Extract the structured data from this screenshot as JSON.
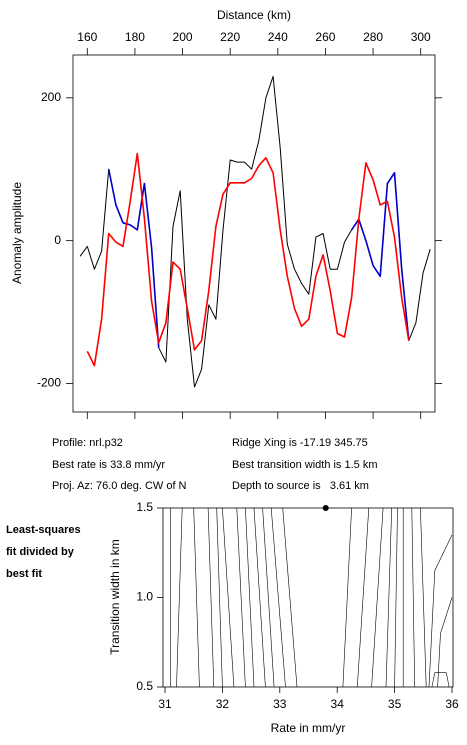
{
  "chart_data": [
    {
      "type": "line",
      "xlabel": "Distance (km)",
      "ylabel": "Anomaly amplitude",
      "xlim": [
        154,
        306
      ],
      "ylim": [
        -240,
        260
      ],
      "xticks": [
        160,
        180,
        200,
        220,
        240,
        260,
        280,
        300
      ],
      "yticks": [
        -200,
        0,
        200
      ],
      "x": [
        157,
        160,
        163,
        166,
        169,
        172,
        175,
        178,
        181,
        184,
        187,
        190,
        193,
        196,
        199,
        202,
        205,
        208,
        211,
        214,
        217,
        220,
        223,
        226,
        229,
        232,
        235,
        238,
        241,
        244,
        247,
        250,
        253,
        256,
        259,
        262,
        265,
        268,
        271,
        274,
        277,
        280,
        283,
        286,
        289,
        292,
        295,
        298,
        301,
        304
      ],
      "series": [
        {
          "color": "#000000",
          "values": [
            -22,
            -8,
            -40,
            -15,
            100,
            50,
            25,
            22,
            15,
            80,
            -10,
            -150,
            -170,
            20,
            70,
            -110,
            -205,
            -180,
            -90,
            -110,
            15,
            113,
            110,
            110,
            100,
            140,
            200,
            230,
            130,
            -5,
            -40,
            -60,
            -75,
            5,
            10,
            -40,
            -40,
            -2,
            15,
            30,
            0,
            -35,
            -50,
            80,
            95,
            -40,
            -140,
            -115,
            -45,
            -12
          ]
        },
        {
          "color": "#0000cc",
          "values": [
            null,
            null,
            null,
            null,
            100,
            50,
            25,
            22,
            15,
            80,
            -10,
            -150,
            null,
            null,
            null,
            null,
            null,
            null,
            null,
            null,
            null,
            null,
            null,
            null,
            null,
            null,
            null,
            null,
            null,
            null,
            null,
            null,
            null,
            null,
            null,
            null,
            null,
            null,
            15,
            30,
            0,
            -35,
            -50,
            80,
            95,
            -40,
            -140,
            null,
            null,
            null
          ]
        },
        {
          "color": "#ff0000",
          "values": [
            null,
            -155,
            -175,
            -110,
            10,
            -2,
            -8,
            55,
            122,
            31,
            -85,
            -143,
            -115,
            -30,
            -40,
            -95,
            -153,
            -140,
            -70,
            20,
            65,
            81,
            81,
            81,
            87,
            105,
            116,
            95,
            15,
            -50,
            -95,
            -120,
            -110,
            -50,
            -20,
            -70,
            -130,
            -135,
            -80,
            30,
            109,
            85,
            50,
            55,
            5,
            -80,
            -140,
            null,
            null,
            null
          ]
        }
      ]
    },
    {
      "type": "contour",
      "xlabel": "Rate in mm/yr",
      "ylabel": "Transition width in km",
      "xlim": [
        31,
        36
      ],
      "ylim": [
        0.5,
        1.5
      ],
      "xticks": [
        31,
        32,
        33,
        34,
        35,
        36
      ],
      "yticks": [
        0.5,
        {
          "value": 1,
          "label": "1.0"
        },
        1.5
      ],
      "contours": [
        {
          "x": [
            31.1,
            31.1
          ],
          "y": [
            0.5,
            1.5
          ]
        },
        {
          "x": [
            31.2,
            31.3
          ],
          "y": [
            0.5,
            1.5
          ]
        },
        {
          "x": [
            31.6,
            31.5
          ],
          "y": [
            0.5,
            1.5
          ]
        },
        {
          "x": [
            31.85,
            31.75
          ],
          "y": [
            0.5,
            1.5
          ]
        },
        {
          "x": [
            32.0,
            31.9
          ],
          "y": [
            0.5,
            1.5
          ]
        },
        {
          "x": [
            32.2,
            32.0
          ],
          "y": [
            0.5,
            1.5
          ]
        },
        {
          "x": [
            32.4,
            32.25
          ],
          "y": [
            0.5,
            1.5
          ]
        },
        {
          "x": [
            32.55,
            32.4
          ],
          "y": [
            0.5,
            1.5
          ]
        },
        {
          "x": [
            32.75,
            32.55
          ],
          "y": [
            0.5,
            1.5
          ]
        },
        {
          "x": [
            32.9,
            32.7
          ],
          "y": [
            0.5,
            1.5
          ]
        },
        {
          "x": [
            33.1,
            32.85
          ],
          "y": [
            0.5,
            1.5
          ]
        },
        {
          "x": [
            33.3,
            33.05
          ],
          "y": [
            0.5,
            1.5
          ]
        },
        {
          "x": [
            34.1,
            34.25
          ],
          "y": [
            0.5,
            1.5
          ]
        },
        {
          "x": [
            34.35,
            34.55
          ],
          "y": [
            0.5,
            1.5
          ]
        },
        {
          "x": [
            34.6,
            34.8
          ],
          "y": [
            0.5,
            1.5
          ]
        },
        {
          "x": [
            34.85,
            34.95
          ],
          "y": [
            0.5,
            1.5
          ]
        },
        {
          "x": [
            35.0,
            35.05
          ],
          "y": [
            0.5,
            1.5
          ]
        },
        {
          "x": [
            35.15,
            35.15
          ],
          "y": [
            0.5,
            1.5
          ]
        },
        {
          "x": [
            35.35,
            35.3
          ],
          "y": [
            0.5,
            1.5
          ]
        },
        {
          "x": [
            35.55,
            35.45
          ],
          "y": [
            0.5,
            1.5
          ]
        },
        {
          "x": [
            36.0,
            35.7,
            35.6
          ],
          "y": [
            1.35,
            1.15,
            0.5
          ]
        },
        {
          "x": [
            36.0,
            35.8,
            35.75
          ],
          "y": [
            1.0,
            0.8,
            0.5
          ]
        },
        {
          "x": [
            35.65,
            35.7,
            35.9,
            35.95
          ],
          "y": [
            0.5,
            0.58,
            0.58,
            0.5
          ]
        }
      ],
      "best_fit": {
        "x": 33.8,
        "y": 1.5
      }
    }
  ],
  "info": {
    "profile": "Profile: nrl.p32",
    "best_rate": "Best rate is 33.8 mm/yr",
    "proj_az": "Proj. Az: 76.0 deg. CW of N",
    "ridge_xing": "Ridge Xing is -17.19 345.75",
    "best_width": "Best transition width is 1.5 km",
    "depth": "Depth to source is   3.61 km"
  },
  "note": [
    "Least-squares",
    "fit divided by",
    "best fit"
  ]
}
